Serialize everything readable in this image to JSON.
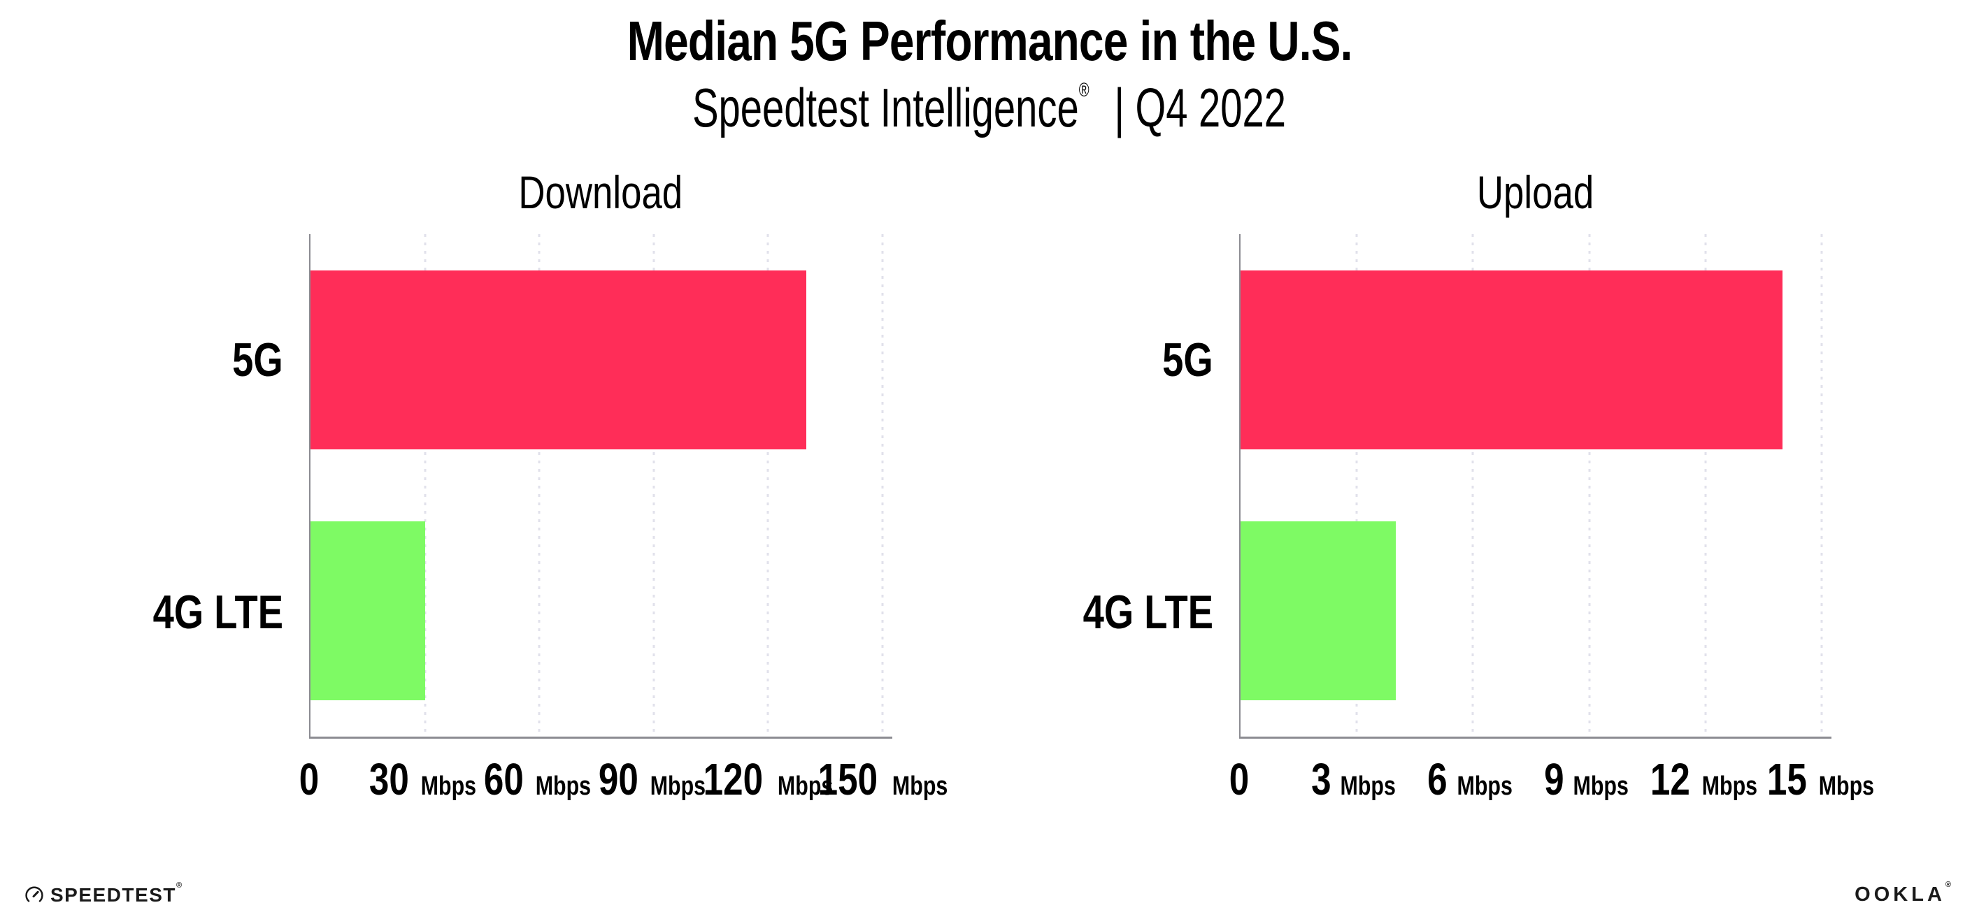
{
  "header": {
    "title": "Median 5G Performance in the U.S.",
    "subtitle_brand": "Speedtest Intelligence",
    "registered_mark": "®",
    "subtitle_rest": "| Q4 2022"
  },
  "chart_data": {
    "type": "bar",
    "orientation": "horizontal",
    "title": "Median 5G Performance in the U.S.",
    "subtitle": "Speedtest Intelligence® | Q4 2022",
    "grid": "dotted-vertical-gridlines",
    "legend": "none",
    "colors": {
      "5G": "#FF2D58",
      "4G LTE": "#7EFA64"
    },
    "axis_color": "#8C8C92",
    "gridline_color": "#E1E1EB",
    "panels": [
      {
        "title": "Download",
        "categories": [
          "5G",
          "4G LTE"
        ],
        "values": [
          130,
          30
        ],
        "unit": "Mbps",
        "xlim": [
          0,
          150
        ],
        "xticks": [
          0,
          30,
          60,
          90,
          120,
          150
        ]
      },
      {
        "title": "Upload",
        "categories": [
          "5G",
          "4G LTE"
        ],
        "values": [
          14,
          4
        ],
        "unit": "Mbps",
        "xlim": [
          0,
          15
        ],
        "xticks": [
          0,
          3,
          6,
          9,
          12,
          15
        ]
      }
    ]
  },
  "footer": {
    "speedtest_label": "SPEEDTEST",
    "speedtest_reg": "®",
    "ookla_label": "OOKLA",
    "ookla_reg": "®"
  }
}
